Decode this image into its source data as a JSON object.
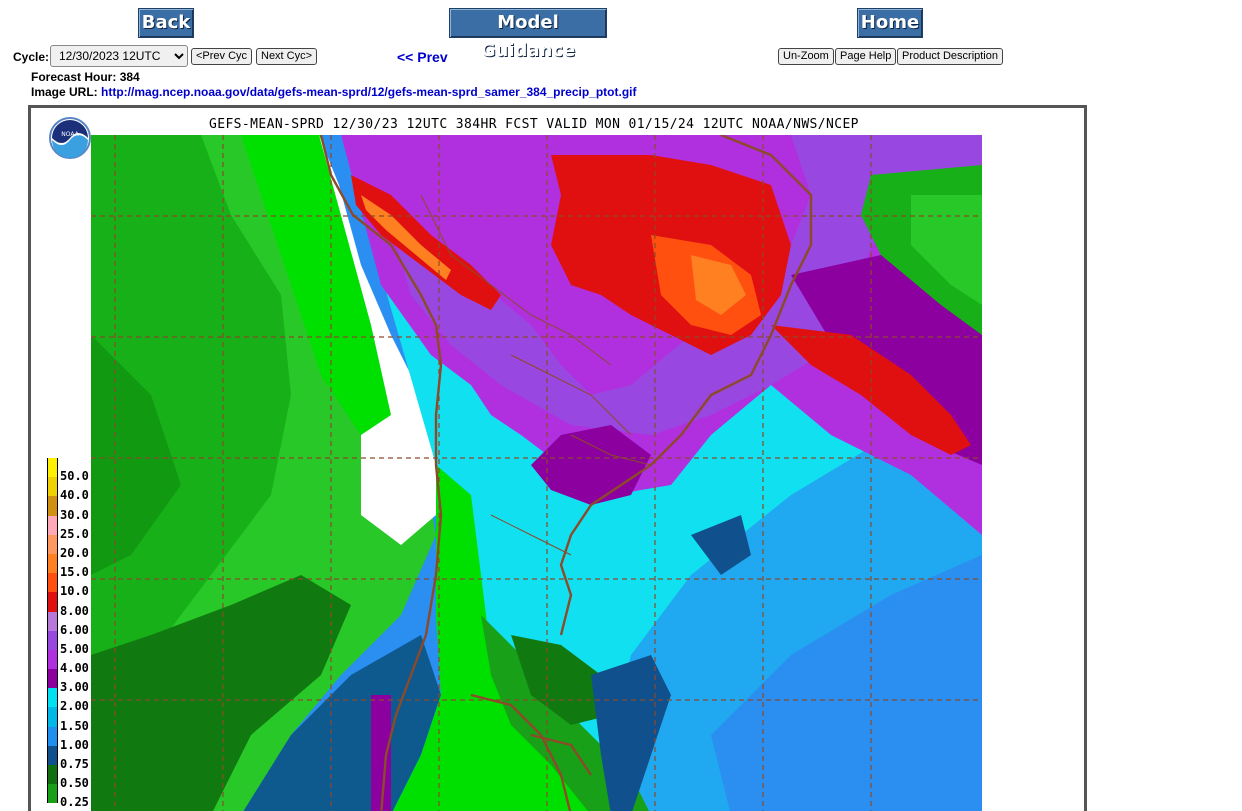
{
  "nav": {
    "back": "Back",
    "model_guidance": "Model Guidance",
    "home": "Home"
  },
  "controls": {
    "cycle_label": "Cycle:",
    "cycle_selected": "12/30/2023 12UTC",
    "prev_cyc": "<Prev Cyc",
    "next_cyc": "Next Cyc>",
    "prev_link": "<< Prev",
    "unzoom": "Un-Zoom",
    "page_help": "Page Help",
    "product_description": "Product Description"
  },
  "info": {
    "forecast_hour_label": "Forecast Hour:",
    "forecast_hour_value": "384",
    "image_url_label": "Image URL:",
    "image_url_value": "http://mag.ncep.noaa.gov/data/gefs-mean-sprd/12/gefs-mean-sprd_samer_384_precip_ptot.gif"
  },
  "map": {
    "title": "GEFS-MEAN-SPRD 12/30/23 12UTC 384HR FCST VALID MON 01/15/24 12UTC NOAA/NWS/NCEP",
    "logo_text": "NOAA",
    "legend": [
      {
        "label": "50.0",
        "color": "#fff000"
      },
      {
        "label": "40.0",
        "color": "#f0d000"
      },
      {
        "label": "30.0",
        "color": "#d09010"
      },
      {
        "label": "25.0",
        "color": "#ffa8b8"
      },
      {
        "label": "20.0",
        "color": "#ff9860"
      },
      {
        "label": "15.0",
        "color": "#ff8020"
      },
      {
        "label": "10.0",
        "color": "#ff5010"
      },
      {
        "label": "8.00",
        "color": "#e01010"
      },
      {
        "label": "6.00",
        "color": "#b878d8"
      },
      {
        "label": "5.00",
        "color": "#9848e0"
      },
      {
        "label": "4.00",
        "color": "#b030e0"
      },
      {
        "label": "3.00",
        "color": "#8c00a0"
      },
      {
        "label": "2.00",
        "color": "#00e0f0"
      },
      {
        "label": "1.50",
        "color": "#00b8e8"
      },
      {
        "label": "1.00",
        "color": "#2090f0"
      },
      {
        "label": "0.75",
        "color": "#10508c"
      },
      {
        "label": "0.50",
        "color": "#107010"
      },
      {
        "label": "0.25",
        "color": "#18a018"
      }
    ]
  }
}
